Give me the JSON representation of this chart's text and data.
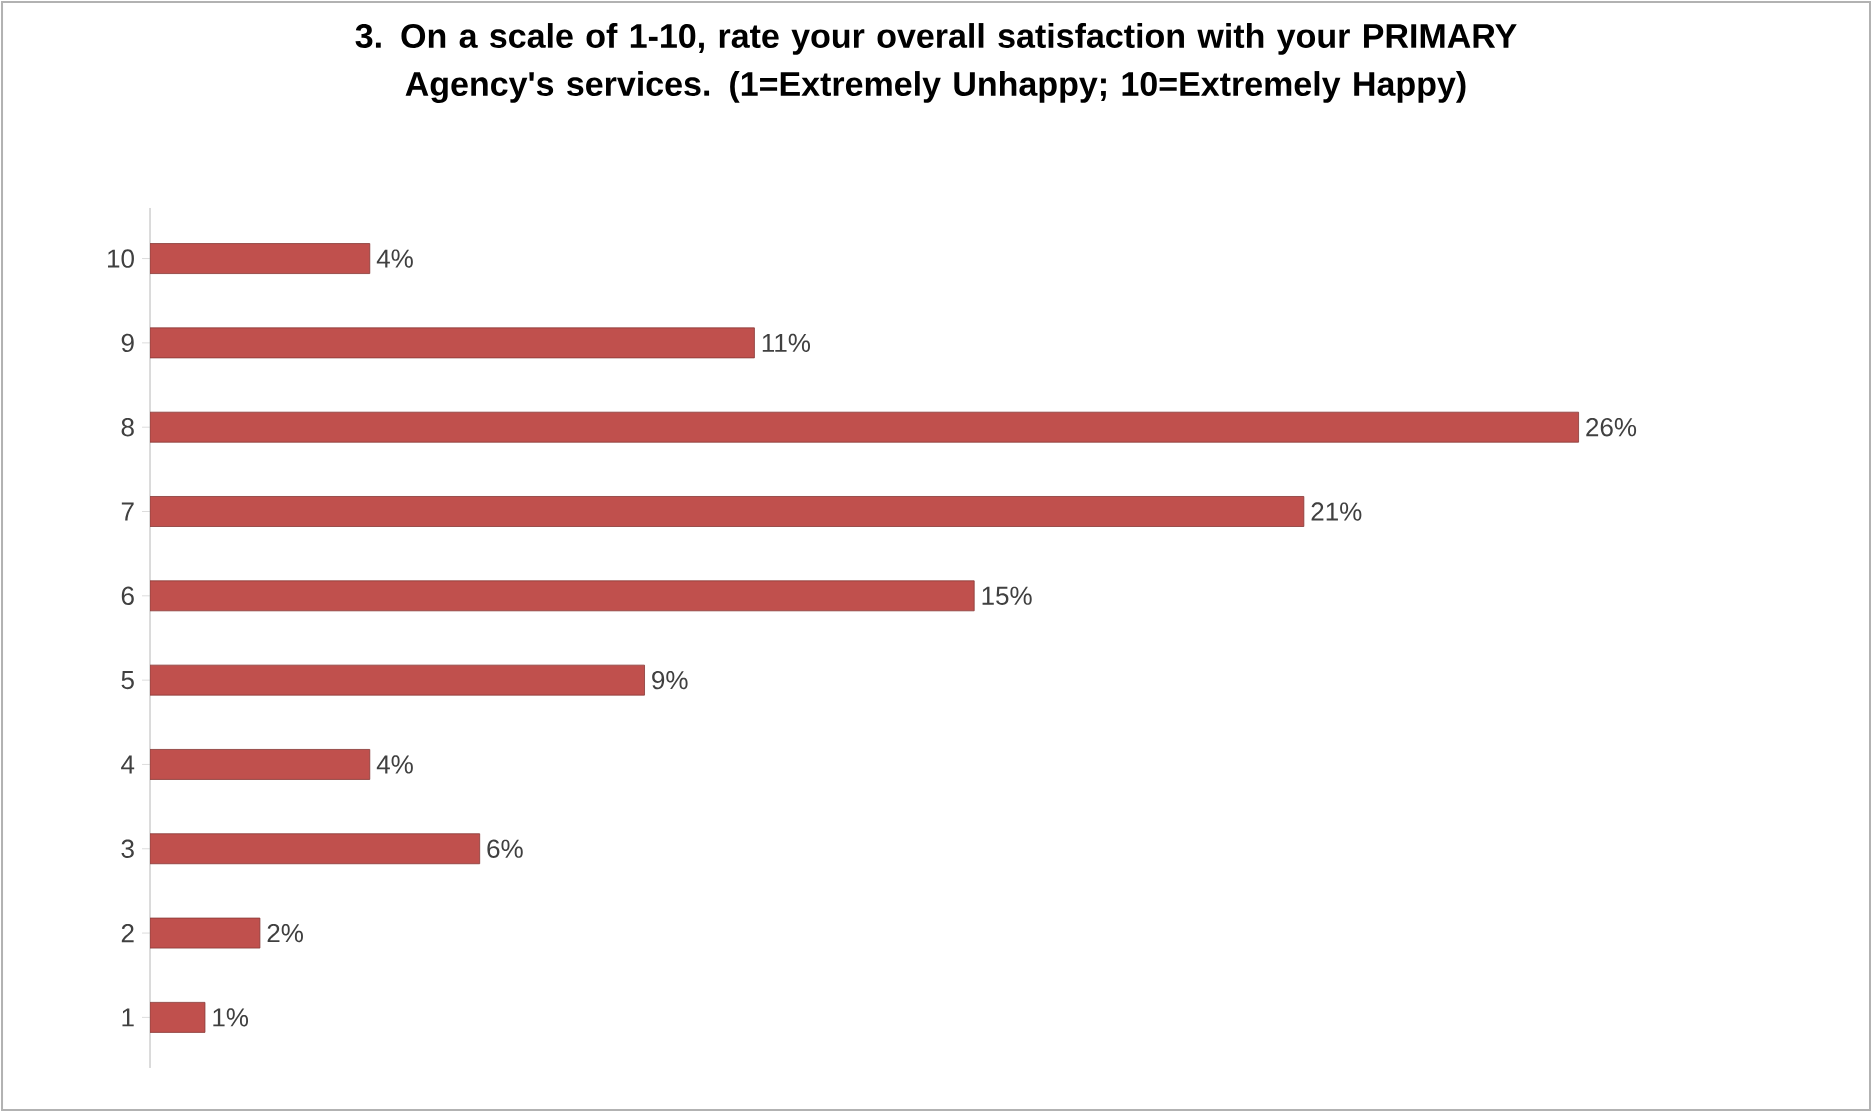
{
  "chart_data": {
    "type": "bar",
    "orientation": "horizontal",
    "title": "3. On a scale of 1-10, rate your overall satisfaction with your PRIMARY Agency's services. (1=Extremely Unhappy; 10=Extremely Happy)",
    "categories": [
      "10",
      "9",
      "8",
      "7",
      "6",
      "5",
      "4",
      "3",
      "2",
      "1"
    ],
    "values": [
      4,
      11,
      26,
      21,
      15,
      9,
      4,
      6,
      2,
      1
    ],
    "value_labels": [
      "4%",
      "11%",
      "26%",
      "21%",
      "15%",
      "9%",
      "4%",
      "6%",
      "2%",
      "1%"
    ],
    "color": "#c0504d",
    "tick_labels": "y"
  }
}
